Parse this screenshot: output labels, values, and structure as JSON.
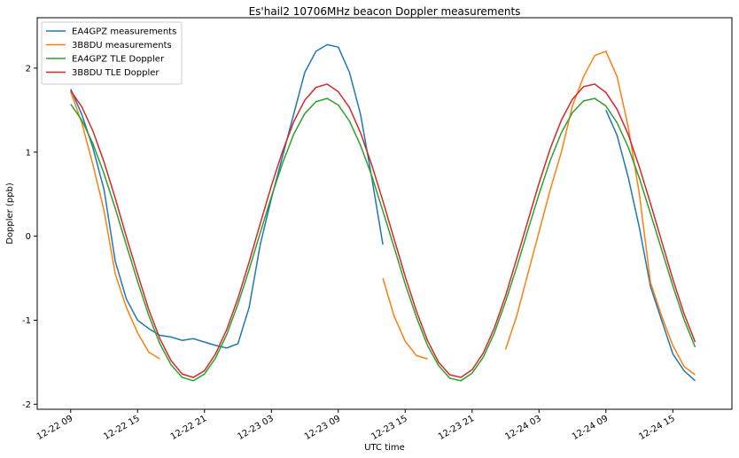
{
  "chart_data": {
    "type": "line",
    "title": "Es'hail2 10706MHz beacon Doppler measurements",
    "x_label": "UTC time",
    "y_label": "Doppler (ppb)",
    "x": [
      9,
      10,
      11,
      12,
      13,
      14,
      15,
      16,
      17,
      18,
      19,
      20,
      21,
      22,
      23,
      24,
      25,
      26,
      27,
      28,
      29,
      30,
      31,
      32,
      33,
      34,
      35,
      36,
      37,
      38,
      39,
      40,
      41,
      42,
      43,
      44,
      45,
      46,
      47,
      48,
      49,
      50,
      51,
      52,
      53,
      54,
      55,
      56,
      57,
      58,
      59,
      60,
      61,
      62,
      63,
      64,
      65
    ],
    "series": [
      {
        "name": "EA4GPZ measurements",
        "color": "#1f77b4",
        "values": [
          1.75,
          1.45,
          1.05,
          0.55,
          -0.3,
          -0.75,
          -1.0,
          -1.1,
          -1.18,
          -1.2,
          -1.24,
          -1.22,
          -1.26,
          -1.3,
          -1.33,
          -1.28,
          -0.85,
          -0.1,
          0.45,
          0.95,
          1.45,
          1.95,
          2.2,
          2.28,
          2.25,
          1.95,
          1.45,
          0.7,
          -0.1,
          null,
          null,
          null,
          null,
          null,
          null,
          null,
          null,
          null,
          null,
          null,
          null,
          null,
          null,
          null,
          null,
          null,
          null,
          null,
          1.5,
          1.2,
          0.7,
          0.1,
          -0.6,
          -1.0,
          -1.4,
          -1.6,
          -1.72
        ]
      },
      {
        "name": "3B8DU measurements",
        "color": "#ff7f0e",
        "values": [
          1.72,
          1.35,
          0.85,
          0.3,
          -0.45,
          -0.85,
          -1.15,
          -1.38,
          -1.46,
          null,
          null,
          null,
          null,
          null,
          null,
          null,
          null,
          null,
          null,
          null,
          null,
          null,
          null,
          null,
          null,
          null,
          null,
          null,
          -0.5,
          -0.95,
          -1.25,
          -1.42,
          -1.46,
          null,
          null,
          null,
          null,
          null,
          null,
          -1.35,
          -0.95,
          -0.45,
          0.05,
          0.55,
          1.0,
          1.55,
          1.9,
          2.15,
          2.2,
          1.9,
          1.3,
          0.5,
          -0.55,
          -0.95,
          -1.3,
          -1.55,
          -1.65
        ]
      },
      {
        "name": "EA4GPZ TLE Doppler",
        "color": "#2ca02c",
        "values": [
          1.57,
          1.38,
          1.1,
          0.74,
          0.33,
          -0.11,
          -0.54,
          -0.94,
          -1.28,
          -1.53,
          -1.68,
          -1.72,
          -1.64,
          -1.45,
          -1.17,
          -0.81,
          -0.4,
          0.04,
          0.47,
          0.87,
          1.21,
          1.46,
          1.6,
          1.64,
          1.56,
          1.37,
          1.08,
          0.72,
          0.3,
          -0.13,
          -0.57,
          -0.96,
          -1.3,
          -1.54,
          -1.69,
          -1.72,
          -1.63,
          -1.44,
          -1.15,
          -0.78,
          -0.37,
          0.07,
          0.5,
          0.9,
          1.23,
          1.47,
          1.61,
          1.64,
          1.55,
          1.35,
          1.06,
          0.69,
          0.27,
          -0.16,
          -0.59,
          -0.99,
          -1.32
        ]
      },
      {
        "name": "3B8DU TLE Doppler",
        "color": "#d62728",
        "values": [
          1.73,
          1.54,
          1.25,
          0.88,
          0.45,
          -0.01,
          -0.45,
          -0.87,
          -1.22,
          -1.48,
          -1.64,
          -1.68,
          -1.6,
          -1.4,
          -1.11,
          -0.74,
          -0.31,
          0.15,
          0.6,
          1.01,
          1.36,
          1.62,
          1.77,
          1.81,
          1.72,
          1.53,
          1.23,
          0.85,
          0.42,
          -0.03,
          -0.48,
          -0.89,
          -1.24,
          -1.5,
          -1.65,
          -1.68,
          -1.59,
          -1.39,
          -1.09,
          -0.71,
          -0.27,
          0.18,
          0.63,
          1.04,
          1.38,
          1.63,
          1.78,
          1.81,
          1.71,
          1.51,
          1.21,
          0.82,
          0.39,
          -0.06,
          -0.51,
          -0.92,
          -1.26
        ]
      }
    ],
    "xlim": [
      6,
      68.3
    ],
    "xticks": [
      {
        "value": 9,
        "label": "12-22 09"
      },
      {
        "value": 15,
        "label": "12-22 15"
      },
      {
        "value": 21,
        "label": "12-22 21"
      },
      {
        "value": 27,
        "label": "12-23 03"
      },
      {
        "value": 33,
        "label": "12-23 09"
      },
      {
        "value": 39,
        "label": "12-23 15"
      },
      {
        "value": 45,
        "label": "12-23 21"
      },
      {
        "value": 51,
        "label": "12-24 03"
      },
      {
        "value": 57,
        "label": "12-24 09"
      },
      {
        "value": 63,
        "label": "12-24 15"
      }
    ],
    "ylim": [
      -2.06,
      2.6
    ],
    "yticks": [
      -2,
      -1,
      0,
      1,
      2
    ],
    "grid": false,
    "legend": "upper-left"
  }
}
